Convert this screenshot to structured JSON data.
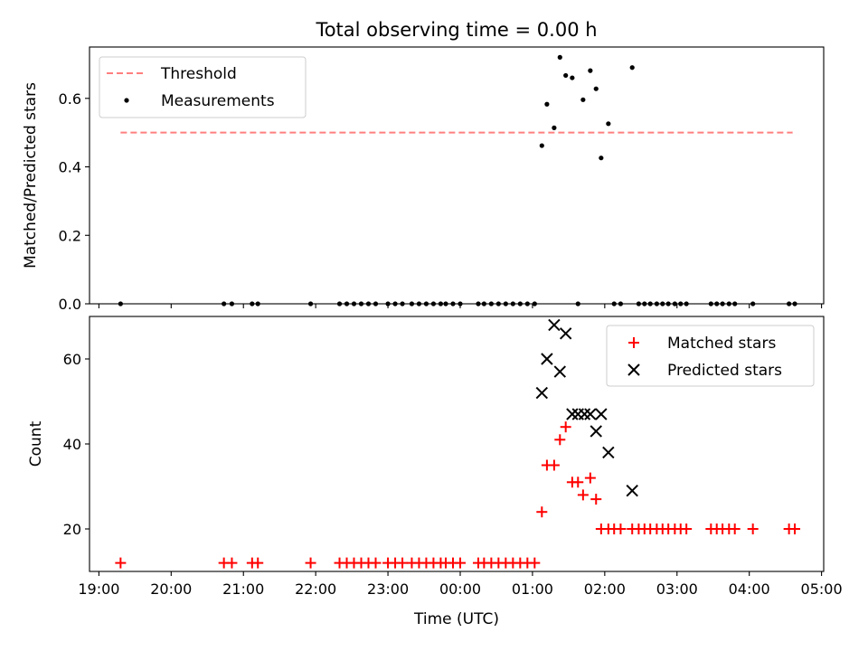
{
  "chart_data": [
    {
      "type": "scatter",
      "title": "Total observing time = 0.00 h",
      "ylabel": "Matched/Predicted stars",
      "xlabel": "",
      "x_axis": "time",
      "xlim_hours": [
        18.87,
        29.03
      ],
      "ylim": [
        0,
        0.75
      ],
      "yticks": [
        0.0,
        0.2,
        0.4,
        0.6
      ],
      "ytick_labels": [
        "0.0",
        "0.2",
        "0.4",
        "0.6"
      ],
      "xticks_hours": [
        19,
        20,
        21,
        22,
        23,
        24,
        25,
        26,
        27,
        28,
        29
      ],
      "show_xtick_labels": false,
      "grid": false,
      "legend": "upper-left",
      "threshold": {
        "name": "Threshold",
        "value": 0.5,
        "x_range_hours": [
          19.3,
          28.6
        ],
        "color": "#ff7f7f",
        "style": "dashed"
      },
      "series": [
        {
          "name": "Measurements",
          "marker": "dot",
          "color": "#000000",
          "x_hours": [
            19.3,
            20.73,
            20.84,
            21.12,
            21.2,
            21.93,
            22.33,
            22.43,
            22.53,
            22.63,
            22.73,
            22.83,
            23.0,
            23.1,
            23.2,
            23.33,
            23.43,
            23.53,
            23.63,
            23.73,
            23.8,
            23.9,
            24.0,
            24.25,
            24.33,
            24.43,
            24.53,
            24.63,
            24.73,
            24.83,
            24.93,
            25.03,
            25.13,
            25.2,
            25.3,
            25.38,
            25.46,
            25.55,
            25.63,
            25.7,
            25.8,
            25.88,
            25.95,
            26.05,
            26.13,
            26.22,
            26.38,
            26.47,
            26.55,
            26.63,
            26.72,
            26.8,
            26.88,
            26.97,
            27.05,
            27.13,
            27.47,
            27.55,
            27.63,
            27.72,
            27.8,
            28.05,
            28.55,
            28.63
          ],
          "y": [
            0,
            0,
            0,
            0,
            0,
            0,
            0,
            0,
            0,
            0,
            0,
            0,
            0,
            0,
            0,
            0,
            0,
            0,
            0,
            0,
            0,
            0,
            0,
            0,
            0,
            0,
            0,
            0,
            0,
            0,
            0,
            0,
            0.462,
            0.583,
            0.514,
            0.72,
            0.667,
            0.66,
            0.0,
            0.596,
            0.681,
            0.628,
            0.426,
            0.526,
            0,
            0,
            0.69,
            0,
            0,
            0,
            0,
            0,
            0,
            0,
            0,
            0,
            0,
            0,
            0,
            0,
            0,
            0,
            0,
            0
          ]
        }
      ]
    },
    {
      "type": "scatter",
      "title": "",
      "ylabel": "Count",
      "xlabel": "Time (UTC)",
      "x_axis": "time",
      "xlim_hours": [
        18.87,
        29.03
      ],
      "ylim": [
        10,
        70
      ],
      "yticks": [
        20,
        40,
        60
      ],
      "ytick_labels": [
        "20",
        "40",
        "60"
      ],
      "xticks_hours": [
        19,
        20,
        21,
        22,
        23,
        24,
        25,
        26,
        27,
        28,
        29
      ],
      "xtick_labels": [
        "19:00",
        "20:00",
        "21:00",
        "22:00",
        "23:00",
        "00:00",
        "01:00",
        "02:00",
        "03:00",
        "04:00",
        "05:00"
      ],
      "grid": false,
      "legend": "upper-right",
      "series": [
        {
          "name": "Matched stars",
          "marker": "plus",
          "color": "#ff0000",
          "x_hours": [
            19.3,
            20.73,
            20.84,
            21.12,
            21.2,
            21.93,
            22.33,
            22.43,
            22.53,
            22.63,
            22.73,
            22.83,
            23.0,
            23.1,
            23.2,
            23.33,
            23.43,
            23.53,
            23.63,
            23.73,
            23.8,
            23.9,
            24.0,
            24.25,
            24.33,
            24.43,
            24.53,
            24.63,
            24.73,
            24.83,
            24.93,
            25.03,
            25.13,
            25.2,
            25.3,
            25.38,
            25.46,
            25.55,
            25.63,
            25.7,
            25.8,
            25.88,
            25.95,
            26.05,
            26.13,
            26.22,
            26.38,
            26.47,
            26.55,
            26.63,
            26.72,
            26.8,
            26.88,
            26.97,
            27.05,
            27.13,
            27.47,
            27.55,
            27.63,
            27.72,
            27.8,
            28.05,
            28.55,
            28.63
          ],
          "y": [
            12,
            12,
            12,
            12,
            12,
            12,
            12,
            12,
            12,
            12,
            12,
            12,
            12,
            12,
            12,
            12,
            12,
            12,
            12,
            12,
            12,
            12,
            12,
            12,
            12,
            12,
            12,
            12,
            12,
            12,
            12,
            12,
            24,
            35,
            35,
            41,
            44,
            31,
            31,
            28,
            32,
            27,
            20,
            20,
            20,
            20,
            20,
            20,
            20,
            20,
            20,
            20,
            20,
            20,
            20,
            20,
            20,
            20,
            20,
            20,
            20,
            20,
            20,
            20
          ]
        },
        {
          "name": "Predicted stars",
          "marker": "x",
          "color": "#000000",
          "x_hours": [
            25.13,
            25.2,
            25.3,
            25.38,
            25.46,
            25.55,
            25.63,
            25.72,
            25.8,
            25.88,
            25.95,
            26.05,
            26.38
          ],
          "y": [
            52,
            60,
            68,
            57,
            66,
            47,
            47,
            47,
            47,
            43,
            47,
            38,
            29
          ]
        }
      ]
    }
  ]
}
